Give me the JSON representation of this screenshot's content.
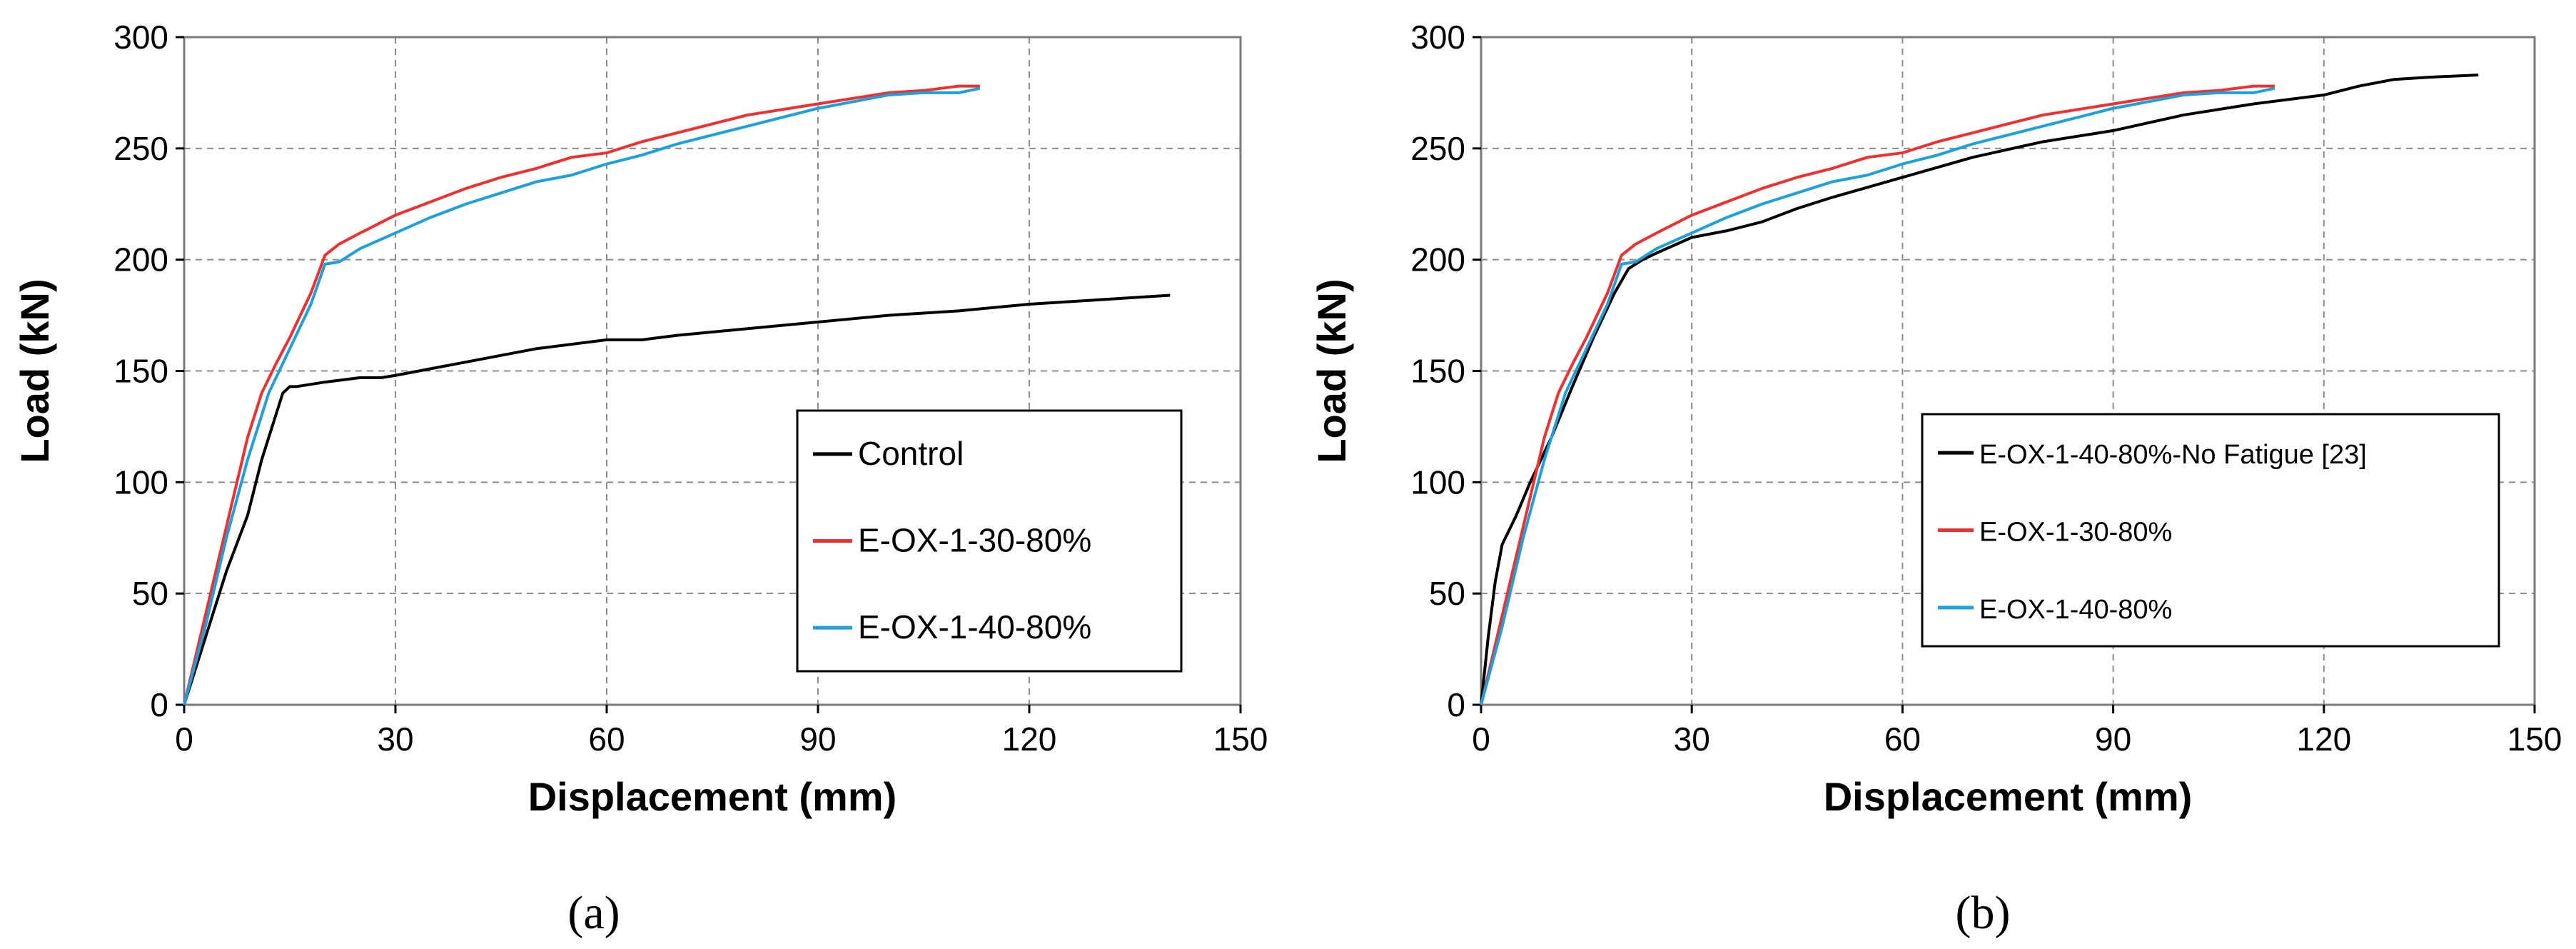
{
  "figure": {
    "panel_labels": [
      "(a)",
      "(b)"
    ]
  },
  "chart_data": [
    {
      "type": "line",
      "panel": "a",
      "xlabel": "Displacement (mm)",
      "ylabel": "Load (kN)",
      "xlim": [
        0,
        150
      ],
      "ylim": [
        0,
        300
      ],
      "xticks": [
        0,
        30,
        60,
        90,
        120,
        150
      ],
      "yticks": [
        0,
        50,
        100,
        150,
        200,
        250,
        300
      ],
      "grid": true,
      "legend_position": "lower-right",
      "series": [
        {
          "name": "Control",
          "color": "#000000",
          "x": [
            0,
            3,
            6,
            9,
            11,
            13,
            14,
            15,
            16,
            20,
            25,
            28,
            30,
            35,
            40,
            50,
            60,
            65,
            70,
            80,
            90,
            100,
            110,
            120,
            130,
            140
          ],
          "y": [
            0,
            30,
            60,
            85,
            110,
            130,
            140,
            143,
            143,
            145,
            147,
            147,
            148,
            151,
            154,
            160,
            164,
            164,
            166,
            169,
            172,
            175,
            177,
            180,
            182,
            184
          ]
        },
        {
          "name": "E-OX-1-30-80%",
          "color": "#ee3030",
          "x": [
            0,
            3,
            6,
            9,
            11,
            13,
            15,
            18,
            20,
            22,
            25,
            30,
            35,
            40,
            45,
            50,
            55,
            60,
            65,
            70,
            80,
            90,
            100,
            105,
            110,
            113
          ],
          "y": [
            0,
            40,
            80,
            120,
            140,
            153,
            165,
            185,
            202,
            207,
            212,
            220,
            226,
            232,
            237,
            241,
            246,
            248,
            253,
            257,
            265,
            270,
            275,
            276,
            278,
            278
          ]
        },
        {
          "name": "E-OX-1-40-80%",
          "color": "#1ea0dc",
          "x": [
            0,
            3,
            6,
            9,
            12,
            15,
            18,
            20,
            22,
            25,
            30,
            35,
            40,
            45,
            50,
            55,
            60,
            65,
            70,
            80,
            90,
            100,
            105,
            110,
            113
          ],
          "y": [
            0,
            35,
            75,
            110,
            140,
            160,
            180,
            198,
            199,
            205,
            212,
            219,
            225,
            230,
            235,
            238,
            243,
            247,
            252,
            260,
            268,
            274,
            275,
            275,
            277
          ]
        }
      ]
    },
    {
      "type": "line",
      "panel": "b",
      "xlabel": "Displacement (mm)",
      "ylabel": "Load (kN)",
      "xlim": [
        0,
        150
      ],
      "ylim": [
        0,
        300
      ],
      "xticks": [
        0,
        30,
        60,
        90,
        120,
        150
      ],
      "yticks": [
        0,
        50,
        100,
        150,
        200,
        250,
        300
      ],
      "grid": true,
      "legend_position": "lower-right",
      "series": [
        {
          "name": "E-OX-1-40-80%-No Fatigue [23]",
          "color": "#000000",
          "x": [
            0,
            1,
            2,
            3,
            5,
            7,
            10,
            13,
            16,
            19,
            21,
            23,
            25,
            30,
            35,
            40,
            45,
            50,
            60,
            70,
            80,
            90,
            100,
            110,
            120,
            125,
            130,
            135,
            142
          ],
          "y": [
            0,
            30,
            55,
            72,
            85,
            100,
            120,
            143,
            165,
            185,
            196,
            200,
            203,
            210,
            213,
            217,
            223,
            228,
            237,
            246,
            253,
            258,
            265,
            270,
            274,
            278,
            281,
            282,
            283
          ]
        },
        {
          "name": "E-OX-1-30-80%",
          "color": "#ee3030",
          "x": [
            0,
            3,
            6,
            9,
            11,
            13,
            15,
            18,
            20,
            22,
            25,
            30,
            35,
            40,
            45,
            50,
            55,
            60,
            65,
            70,
            80,
            90,
            100,
            105,
            110,
            113
          ],
          "y": [
            0,
            40,
            80,
            120,
            140,
            153,
            165,
            185,
            202,
            207,
            212,
            220,
            226,
            232,
            237,
            241,
            246,
            248,
            253,
            257,
            265,
            270,
            275,
            276,
            278,
            278
          ]
        },
        {
          "name": "E-OX-1-40-80%",
          "color": "#1ea0dc",
          "x": [
            0,
            3,
            6,
            9,
            12,
            15,
            18,
            20,
            22,
            25,
            30,
            35,
            40,
            45,
            50,
            55,
            60,
            65,
            70,
            80,
            90,
            100,
            105,
            110,
            113
          ],
          "y": [
            0,
            35,
            75,
            110,
            140,
            160,
            180,
            198,
            199,
            205,
            212,
            219,
            225,
            230,
            235,
            238,
            243,
            247,
            252,
            260,
            268,
            274,
            275,
            275,
            277
          ]
        }
      ]
    }
  ]
}
